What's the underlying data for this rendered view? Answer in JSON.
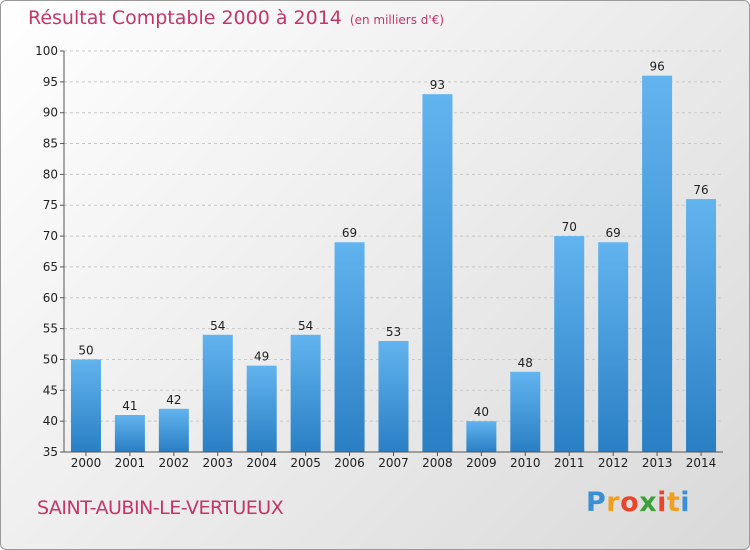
{
  "title": "Résultat Comptable 2000 à 2014",
  "subtitle": "(en milliers d'€)",
  "town": "SAINT-AUBIN-LE-VERTUEUX",
  "logo": {
    "letters": [
      "P",
      "r",
      "o",
      "x",
      "i",
      "t",
      "i"
    ],
    "colors": [
      "#3b8fd6",
      "#f0a020",
      "#e8452c",
      "#3aa13a",
      "#e8452c",
      "#f0a020",
      "#3b8fd6"
    ]
  },
  "colors": {
    "bar_top": "#62b4ef",
    "bar_bottom": "#2a7fc4",
    "grid": "#c8c8c8",
    "axis": "#555555",
    "text": "#222222",
    "accent": "#c4356a"
  },
  "chart_data": {
    "type": "bar",
    "title": "Résultat Comptable 2000 à 2014",
    "xlabel": "",
    "ylabel": "(en milliers d'€)",
    "ylim": [
      35,
      100
    ],
    "yticks": [
      35,
      40,
      45,
      50,
      55,
      60,
      65,
      70,
      75,
      80,
      85,
      90,
      95,
      100
    ],
    "categories": [
      "2000",
      "2001",
      "2002",
      "2003",
      "2004",
      "2005",
      "2006",
      "2007",
      "2008",
      "2009",
      "2010",
      "2011",
      "2012",
      "2013",
      "2014"
    ],
    "values": [
      50,
      41,
      42,
      54,
      49,
      54,
      69,
      53,
      93,
      40,
      48,
      70,
      69,
      96,
      76
    ],
    "grid": true
  }
}
